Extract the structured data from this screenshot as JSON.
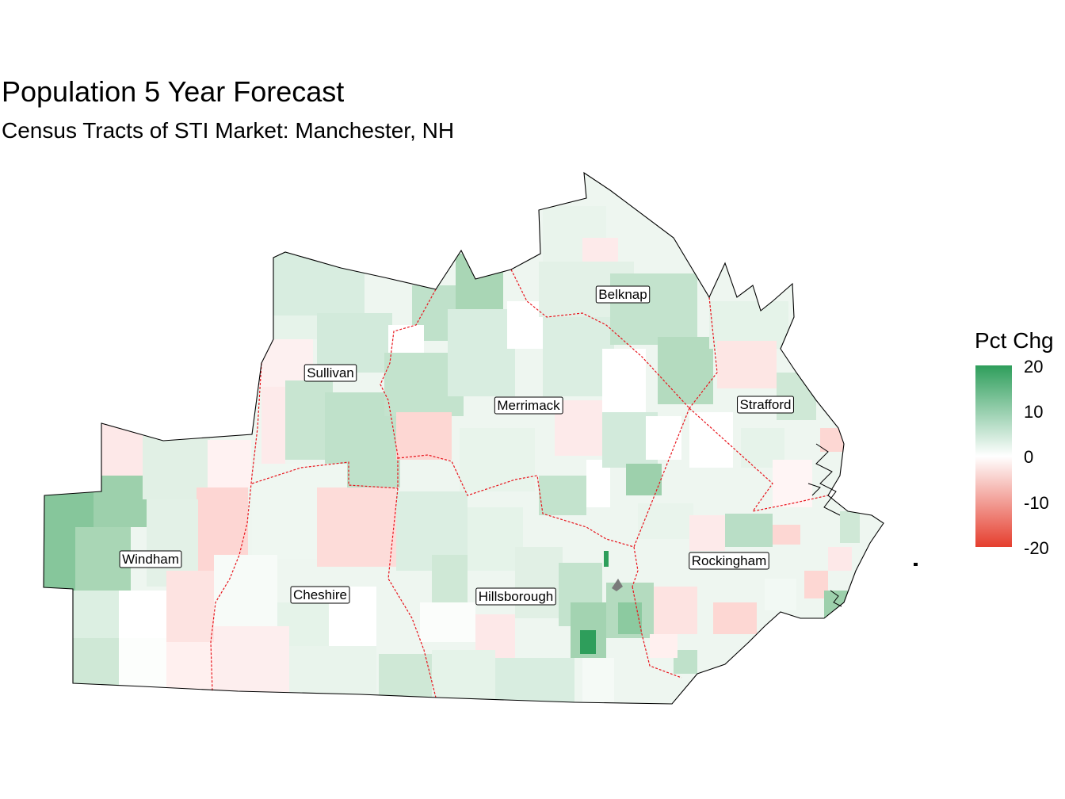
{
  "title": "Population 5 Year Forecast",
  "subtitle": "Census Tracts of STI Market: Manchester, NH",
  "legend": {
    "title": "Pct Chg",
    "ticks": [
      "20",
      "10",
      "0",
      "-10",
      "-20"
    ],
    "scale": {
      "min": -20,
      "max": 20,
      "low_color": "#e53e2e",
      "mid_color": "#ffffff",
      "high_color": "#2e9e5b"
    }
  },
  "colors": {
    "county_border": "#e8141c",
    "outer_border": "#000000",
    "no_data": "#7a7a7a"
  },
  "counties": [
    {
      "name": "Windham",
      "pct_chg": 7
    },
    {
      "name": "Sullivan",
      "pct_chg": 4
    },
    {
      "name": "Cheshire",
      "pct_chg": 1
    },
    {
      "name": "Merrimack",
      "pct_chg": 3
    },
    {
      "name": "Belknap",
      "pct_chg": 4
    },
    {
      "name": "Hillsborough",
      "pct_chg": 3
    },
    {
      "name": "Strafford",
      "pct_chg": 2
    },
    {
      "name": "Rockingham",
      "pct_chg": 2
    }
  ]
}
